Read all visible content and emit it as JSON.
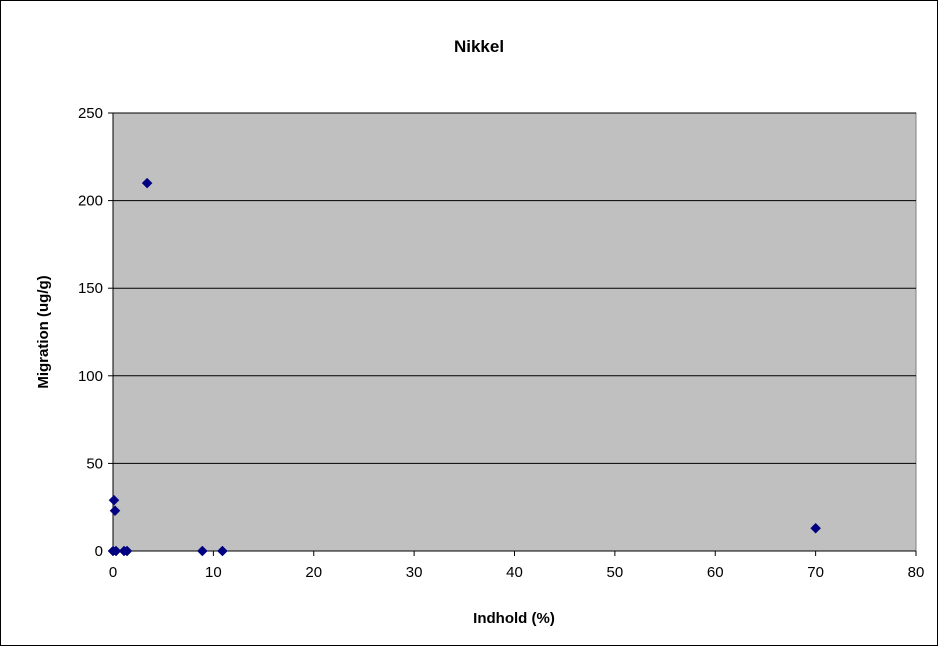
{
  "chart_data": {
    "type": "scatter",
    "title": "Nikkel",
    "xlabel": "Indhold (%)",
    "ylabel": "Migration (ug/g)",
    "xlim": [
      0,
      80
    ],
    "ylim": [
      0,
      250
    ],
    "x_ticks": [
      "0",
      "10",
      "20",
      "30",
      "40",
      "50",
      "60",
      "70",
      "80"
    ],
    "y_ticks": [
      "0",
      "50",
      "100",
      "150",
      "200",
      "250"
    ],
    "grid": "horizontal",
    "legend": "none",
    "colors": {
      "plot_area": "#c0c0c0",
      "marker": "#000080",
      "gridline": "#000000"
    },
    "series": [
      {
        "marker": "diamond",
        "points": [
          {
            "x": 0.0,
            "y": 0
          },
          {
            "x": 0.1,
            "y": 29
          },
          {
            "x": 0.2,
            "y": 23
          },
          {
            "x": 0.3,
            "y": 0
          },
          {
            "x": 1.1,
            "y": 0
          },
          {
            "x": 1.4,
            "y": 0
          },
          {
            "x": 3.4,
            "y": 210
          },
          {
            "x": 8.9,
            "y": 0
          },
          {
            "x": 10.9,
            "y": 0
          },
          {
            "x": 70.0,
            "y": 13
          }
        ]
      }
    ]
  }
}
